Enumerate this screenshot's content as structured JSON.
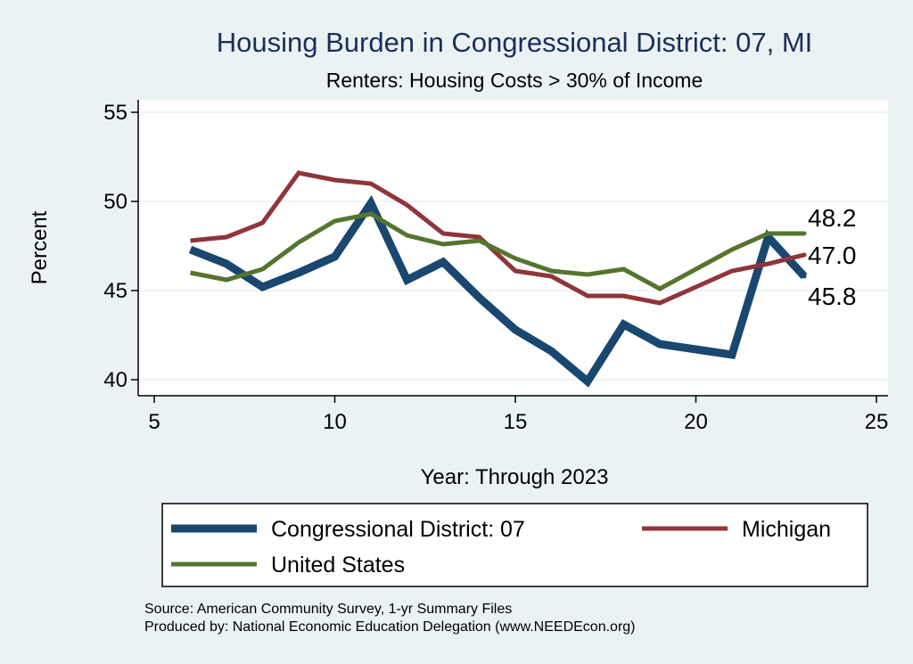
{
  "chart_data": {
    "type": "line",
    "title": "Housing Burden in Congressional District:  07, MI",
    "subtitle": "Renters: Housing Costs > 30% of Income",
    "xlabel": "Year: Through 2023",
    "ylabel": "Percent",
    "xlim": [
      5,
      25
    ],
    "ylim": [
      40,
      55
    ],
    "xticks": [
      "5",
      "10",
      "15",
      "20",
      "25"
    ],
    "yticks": [
      "40",
      "45",
      "50",
      "55"
    ],
    "grid": true,
    "legend_position": "bottom",
    "series": [
      {
        "name": "Congressional District:  07",
        "color": "#1a476f",
        "x": [
          6,
          7,
          8,
          9,
          10,
          11,
          12,
          13,
          14,
          15,
          16,
          17,
          18,
          19,
          20,
          21,
          22,
          23
        ],
        "values": [
          47.3,
          46.5,
          45.2,
          46.0,
          46.9,
          49.9,
          45.6,
          46.6,
          44.6,
          42.8,
          41.6,
          39.9,
          43.1,
          42.0,
          41.7,
          41.4,
          48.0,
          45.8
        ],
        "end_label": "45.8"
      },
      {
        "name": "Michigan",
        "color": "#90353b",
        "x": [
          6,
          7,
          8,
          9,
          10,
          11,
          12,
          13,
          14,
          15,
          16,
          17,
          18,
          19,
          20,
          21,
          22,
          23
        ],
        "values": [
          47.8,
          48.0,
          48.8,
          51.6,
          51.2,
          51.0,
          49.8,
          48.2,
          48.0,
          46.1,
          45.8,
          44.7,
          44.7,
          44.3,
          45.2,
          46.1,
          46.5,
          47.0
        ],
        "end_label": "47.0"
      },
      {
        "name": "United States",
        "color": "#55752f",
        "x": [
          6,
          7,
          8,
          9,
          10,
          11,
          12,
          13,
          14,
          15,
          16,
          17,
          18,
          19,
          20,
          21,
          22,
          23
        ],
        "values": [
          46.0,
          45.6,
          46.2,
          47.7,
          48.9,
          49.3,
          48.1,
          47.6,
          47.8,
          46.8,
          46.1,
          45.9,
          46.2,
          45.1,
          46.2,
          47.3,
          48.2,
          48.2
        ],
        "end_label": "48.2"
      }
    ]
  },
  "source_note": "Source: American Community Survey, 1-yr Summary Files",
  "produced_note": "Produced by: National Economic Education Delegation (www.NEEDEcon.org)"
}
